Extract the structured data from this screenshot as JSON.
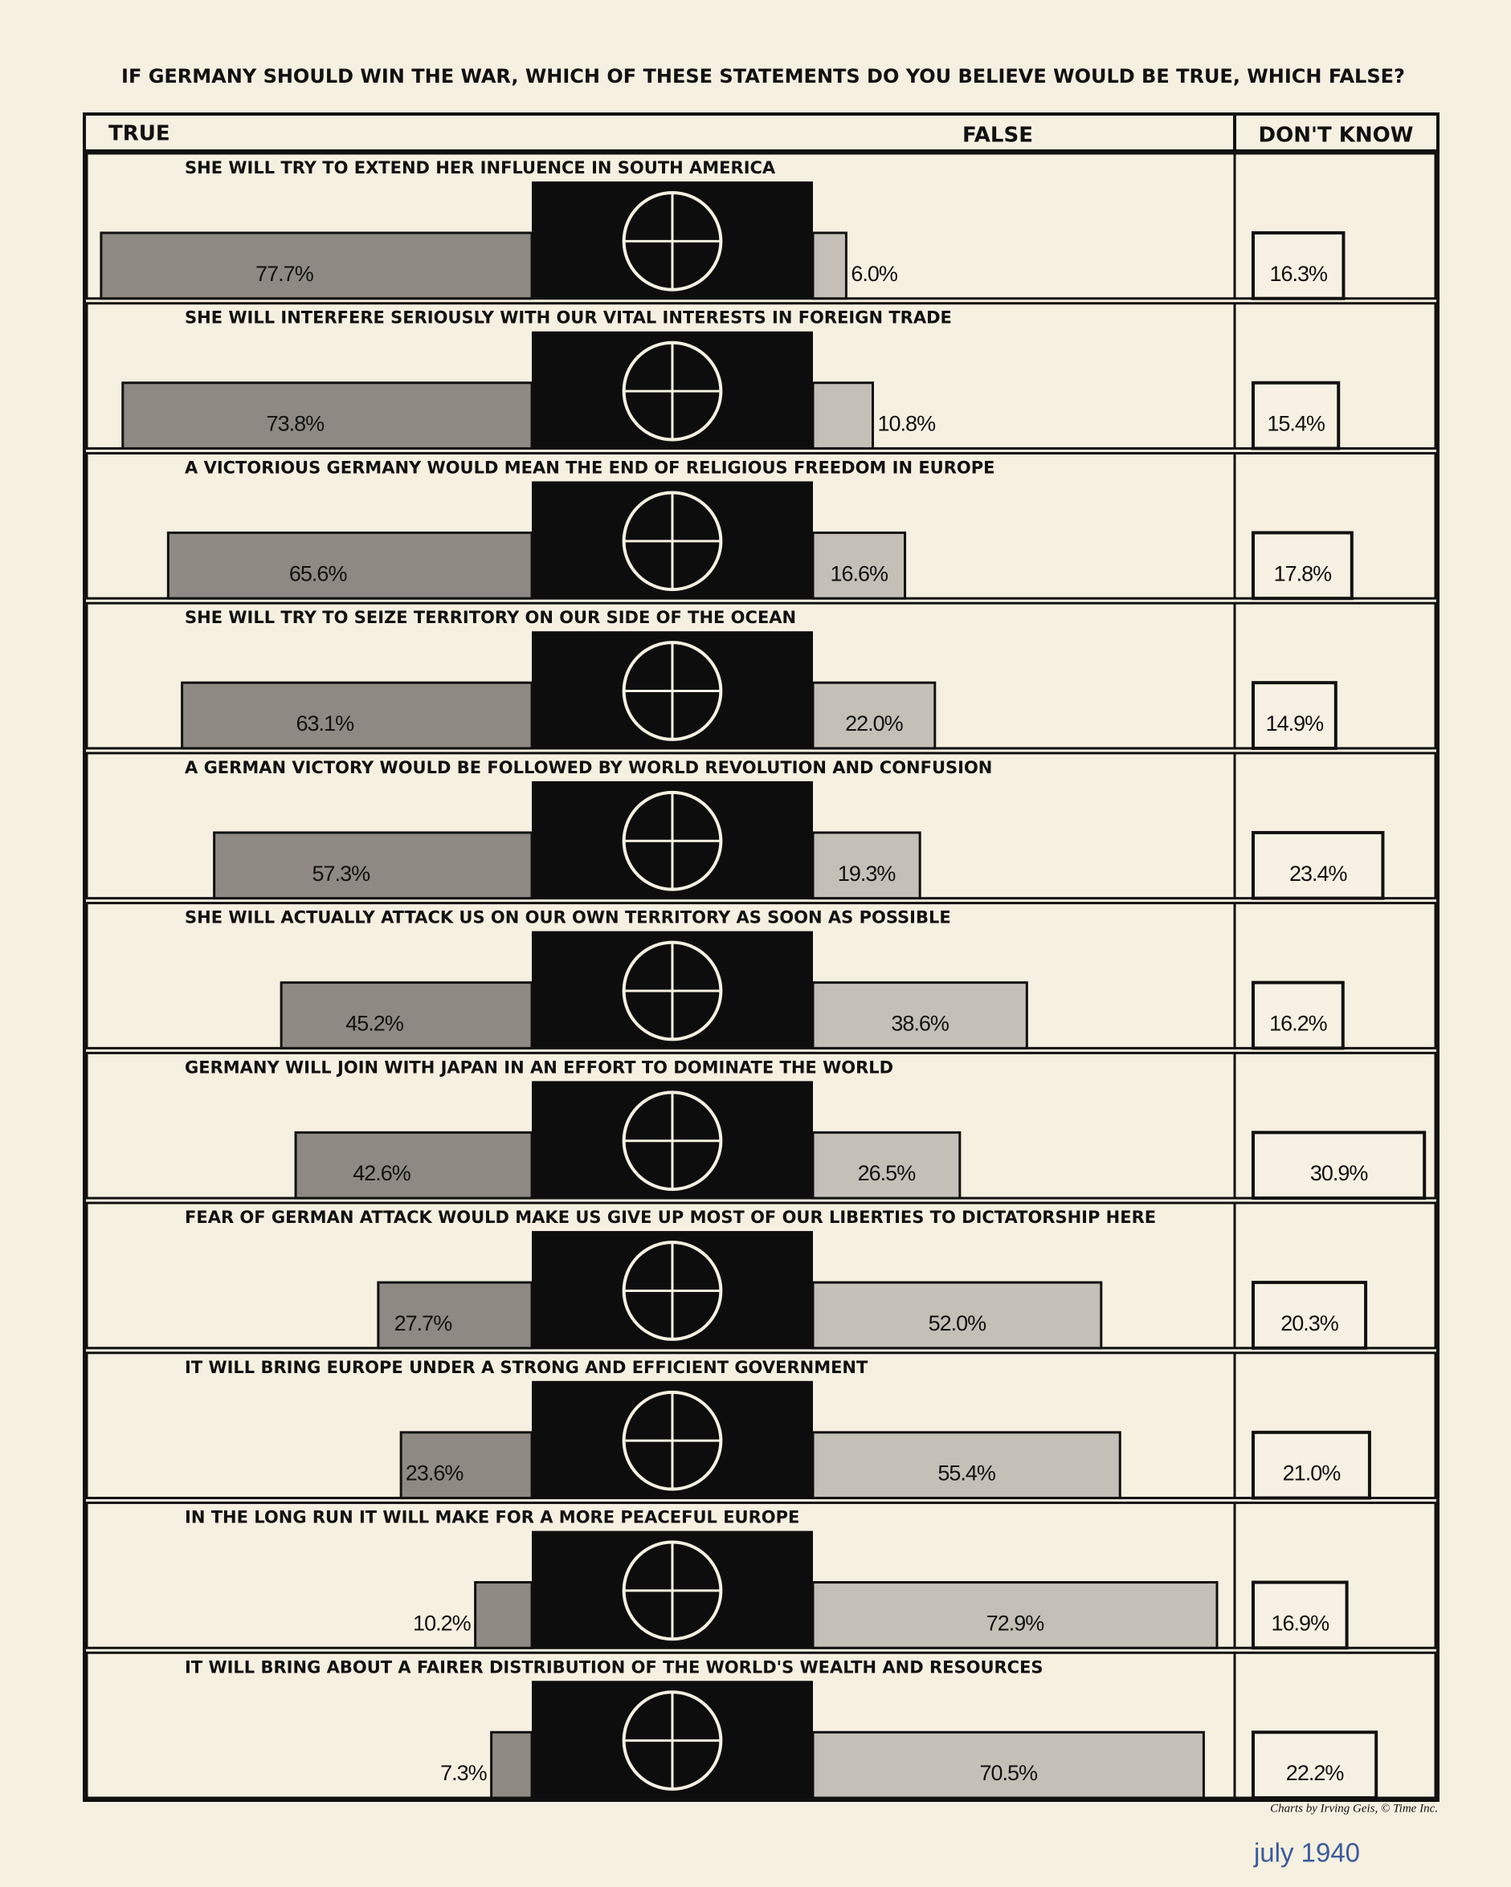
{
  "chart_data": {
    "type": "diverging_bar",
    "title": "IF GERMANY SHOULD WIN THE WAR, WHICH OF THESE STATEMENTS DO YOU BELIEVE WOULD BE TRUE, WHICH FALSE?",
    "categories": [
      "SHE WILL TRY TO EXTEND HER INFLUENCE IN SOUTH AMERICA",
      "SHE WILL INTERFERE SERIOUSLY WITH OUR VITAL INTERESTS IN FOREIGN TRADE",
      "A VICTORIOUS GERMANY WOULD MEAN THE END OF RELIGIOUS FREEDOM IN EUROPE",
      "SHE WILL TRY TO SEIZE TERRITORY ON OUR SIDE OF THE OCEAN",
      "A GERMAN VICTORY WOULD BE FOLLOWED BY WORLD REVOLUTION AND CONFUSION",
      "SHE WILL ACTUALLY ATTACK US ON OUR OWN TERRITORY AS SOON AS POSSIBLE",
      "GERMANY WILL JOIN WITH JAPAN IN AN EFFORT TO DOMINATE THE WORLD",
      "FEAR OF GERMAN ATTACK WOULD MAKE US GIVE UP MOST OF OUR LIBERTIES TO DICTATORSHIP HERE",
      "IT WILL BRING EUROPE UNDER A STRONG AND EFFICIENT GOVERNMENT",
      "IN THE LONG RUN IT WILL MAKE FOR A MORE PEACEFUL EUROPE",
      "IT WILL BRING ABOUT A FAIRER DISTRIBUTION OF THE WORLD'S WEALTH AND RESOURCES"
    ],
    "series": [
      {
        "name": "TRUE",
        "color": "#8e8a83",
        "values": [
          77.7,
          73.8,
          65.6,
          63.1,
          57.3,
          45.2,
          42.6,
          27.7,
          23.6,
          10.2,
          7.3
        ],
        "value_labels": [
          "77.7%",
          "73.8%",
          "65.6%",
          "63.1%",
          "57.3%",
          "45.2%",
          "42.6%",
          "27.7%",
          "23.6%",
          "10.2%",
          "7.3%"
        ]
      },
      {
        "name": "FALSE",
        "color": "#c4c0b7",
        "values": [
          6.0,
          10.8,
          16.6,
          22.0,
          19.3,
          38.6,
          26.5,
          52.0,
          55.4,
          72.9,
          70.5
        ],
        "value_labels": [
          "6.0%",
          "10.8%",
          "16.6%",
          "22.0%",
          "19.3%",
          "38.6%",
          "26.5%",
          "52.0%",
          "55.4%",
          "72.9%",
          "70.5%"
        ]
      },
      {
        "name": "DON'T KNOW",
        "color": "#f6f1e2",
        "values": [
          16.3,
          15.4,
          17.8,
          14.9,
          23.4,
          16.2,
          30.9,
          20.3,
          21.0,
          16.9,
          22.2
        ],
        "value_labels": [
          "16.3%",
          "15.4%",
          "17.8%",
          "14.9%",
          "23.4%",
          "16.2%",
          "30.9%",
          "20.3%",
          "21.0%",
          "16.9%",
          "22.2%"
        ]
      }
    ],
    "credit": "Charts by Irving Geis, © Time Inc.",
    "date": "july 1940"
  }
}
